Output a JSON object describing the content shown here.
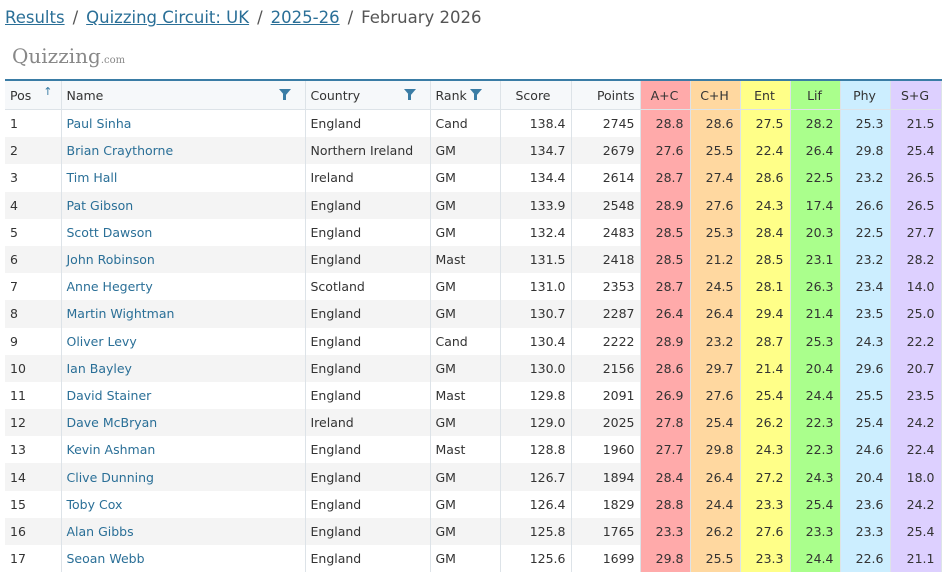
{
  "breadcrumb": {
    "items": [
      "Results",
      "Quizzing Circuit: UK",
      "2025-26"
    ],
    "current": "February 2026"
  },
  "logo": {
    "text": "Quizzing",
    "suffix": ".com"
  },
  "table": {
    "headers": {
      "pos": "Pos",
      "name": "Name",
      "country": "Country",
      "rank": "Rank",
      "score": "Score",
      "points": "Points",
      "cats": [
        "A+C",
        "C+H",
        "Ent",
        "Lif",
        "Phy",
        "S+G"
      ]
    },
    "category_colors": [
      "#ffaaaa",
      "#ffd8a0",
      "#ffff88",
      "#aaff8c",
      "#cceeff",
      "#ddd0ff"
    ],
    "rows": [
      [
        "1",
        "Paul Sinha",
        "England",
        "Cand",
        "138.4",
        "2745",
        "28.8",
        "28.6",
        "27.5",
        "28.2",
        "25.3",
        "21.5"
      ],
      [
        "2",
        "Brian Craythorne",
        "Northern Ireland",
        "GM",
        "134.7",
        "2679",
        "27.6",
        "25.5",
        "22.4",
        "26.4",
        "29.8",
        "25.4"
      ],
      [
        "3",
        "Tim Hall",
        "Ireland",
        "GM",
        "134.4",
        "2614",
        "28.7",
        "27.4",
        "28.6",
        "22.5",
        "23.2",
        "26.5"
      ],
      [
        "4",
        "Pat Gibson",
        "England",
        "GM",
        "133.9",
        "2548",
        "28.9",
        "27.6",
        "24.3",
        "17.4",
        "26.6",
        "26.5"
      ],
      [
        "5",
        "Scott Dawson",
        "England",
        "GM",
        "132.4",
        "2483",
        "28.5",
        "25.3",
        "28.4",
        "20.3",
        "22.5",
        "27.7"
      ],
      [
        "6",
        "John Robinson",
        "England",
        "Mast",
        "131.5",
        "2418",
        "28.5",
        "21.2",
        "28.5",
        "23.1",
        "23.2",
        "28.2"
      ],
      [
        "7",
        "Anne Hegerty",
        "Scotland",
        "GM",
        "131.0",
        "2353",
        "28.7",
        "24.5",
        "28.1",
        "26.3",
        "23.4",
        "14.0"
      ],
      [
        "8",
        "Martin Wightman",
        "England",
        "GM",
        "130.7",
        "2287",
        "26.4",
        "26.4",
        "29.4",
        "21.4",
        "23.5",
        "25.0"
      ],
      [
        "9",
        "Oliver Levy",
        "England",
        "Cand",
        "130.4",
        "2222",
        "28.9",
        "23.2",
        "28.7",
        "25.3",
        "24.3",
        "22.2"
      ],
      [
        "10",
        "Ian Bayley",
        "England",
        "GM",
        "130.0",
        "2156",
        "28.6",
        "29.7",
        "21.4",
        "20.4",
        "29.6",
        "20.7"
      ],
      [
        "11",
        "David Stainer",
        "England",
        "Mast",
        "129.8",
        "2091",
        "26.9",
        "27.6",
        "25.4",
        "24.4",
        "25.5",
        "23.5"
      ],
      [
        "12",
        "Dave McBryan",
        "Ireland",
        "GM",
        "129.0",
        "2025",
        "27.8",
        "25.4",
        "26.2",
        "22.3",
        "25.4",
        "24.2"
      ],
      [
        "13",
        "Kevin Ashman",
        "England",
        "Mast",
        "128.8",
        "1960",
        "27.7",
        "29.8",
        "24.3",
        "22.3",
        "24.6",
        "22.4"
      ],
      [
        "14",
        "Clive Dunning",
        "England",
        "GM",
        "126.7",
        "1894",
        "28.4",
        "26.4",
        "27.2",
        "24.3",
        "20.4",
        "18.0"
      ],
      [
        "15",
        "Toby Cox",
        "England",
        "GM",
        "126.4",
        "1829",
        "28.8",
        "24.4",
        "23.3",
        "25.4",
        "23.6",
        "24.2"
      ],
      [
        "16",
        "Alan Gibbs",
        "England",
        "GM",
        "125.8",
        "1765",
        "23.3",
        "26.2",
        "27.6",
        "23.3",
        "23.3",
        "25.4"
      ],
      [
        "17",
        "Seoan Webb",
        "England",
        "GM",
        "125.6",
        "1699",
        "29.8",
        "25.5",
        "23.3",
        "24.4",
        "22.6",
        "21.1"
      ]
    ]
  }
}
